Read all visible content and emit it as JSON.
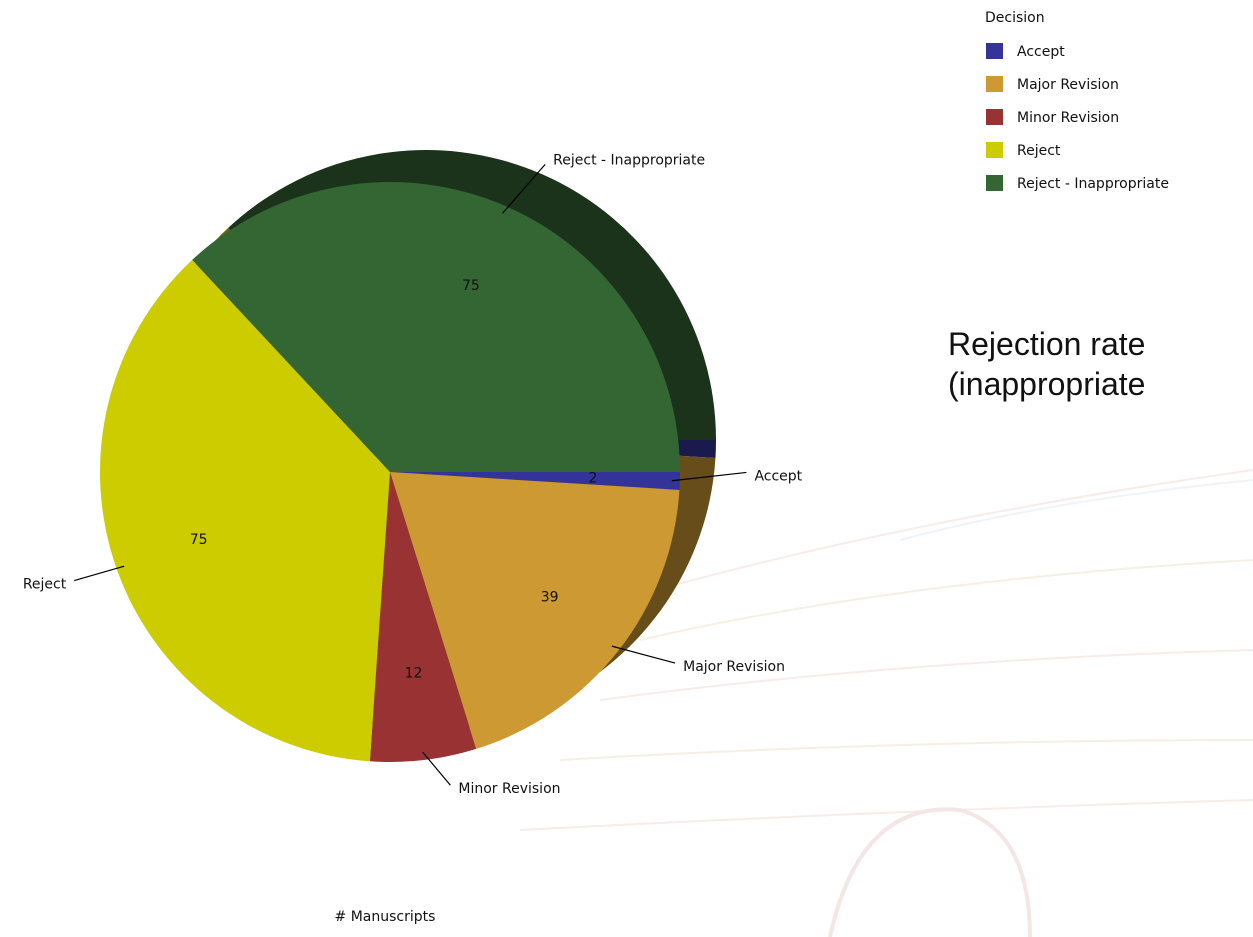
{
  "chart_data": {
    "type": "pie",
    "categories": [
      "Accept",
      "Major Revision",
      "Minor Revision",
      "Reject",
      "Reject - Inappropriate"
    ],
    "values": [
      2,
      39,
      12,
      75,
      75
    ],
    "colors": [
      "#33339a",
      "#cc9933",
      "#993333",
      "#cccc00",
      "#336633"
    ],
    "legend_title": "Decision",
    "legend_position": "top-right",
    "xlabel": "# Manuscripts"
  },
  "annotations": [
    "Rejection rate",
    "(inappropriate"
  ]
}
